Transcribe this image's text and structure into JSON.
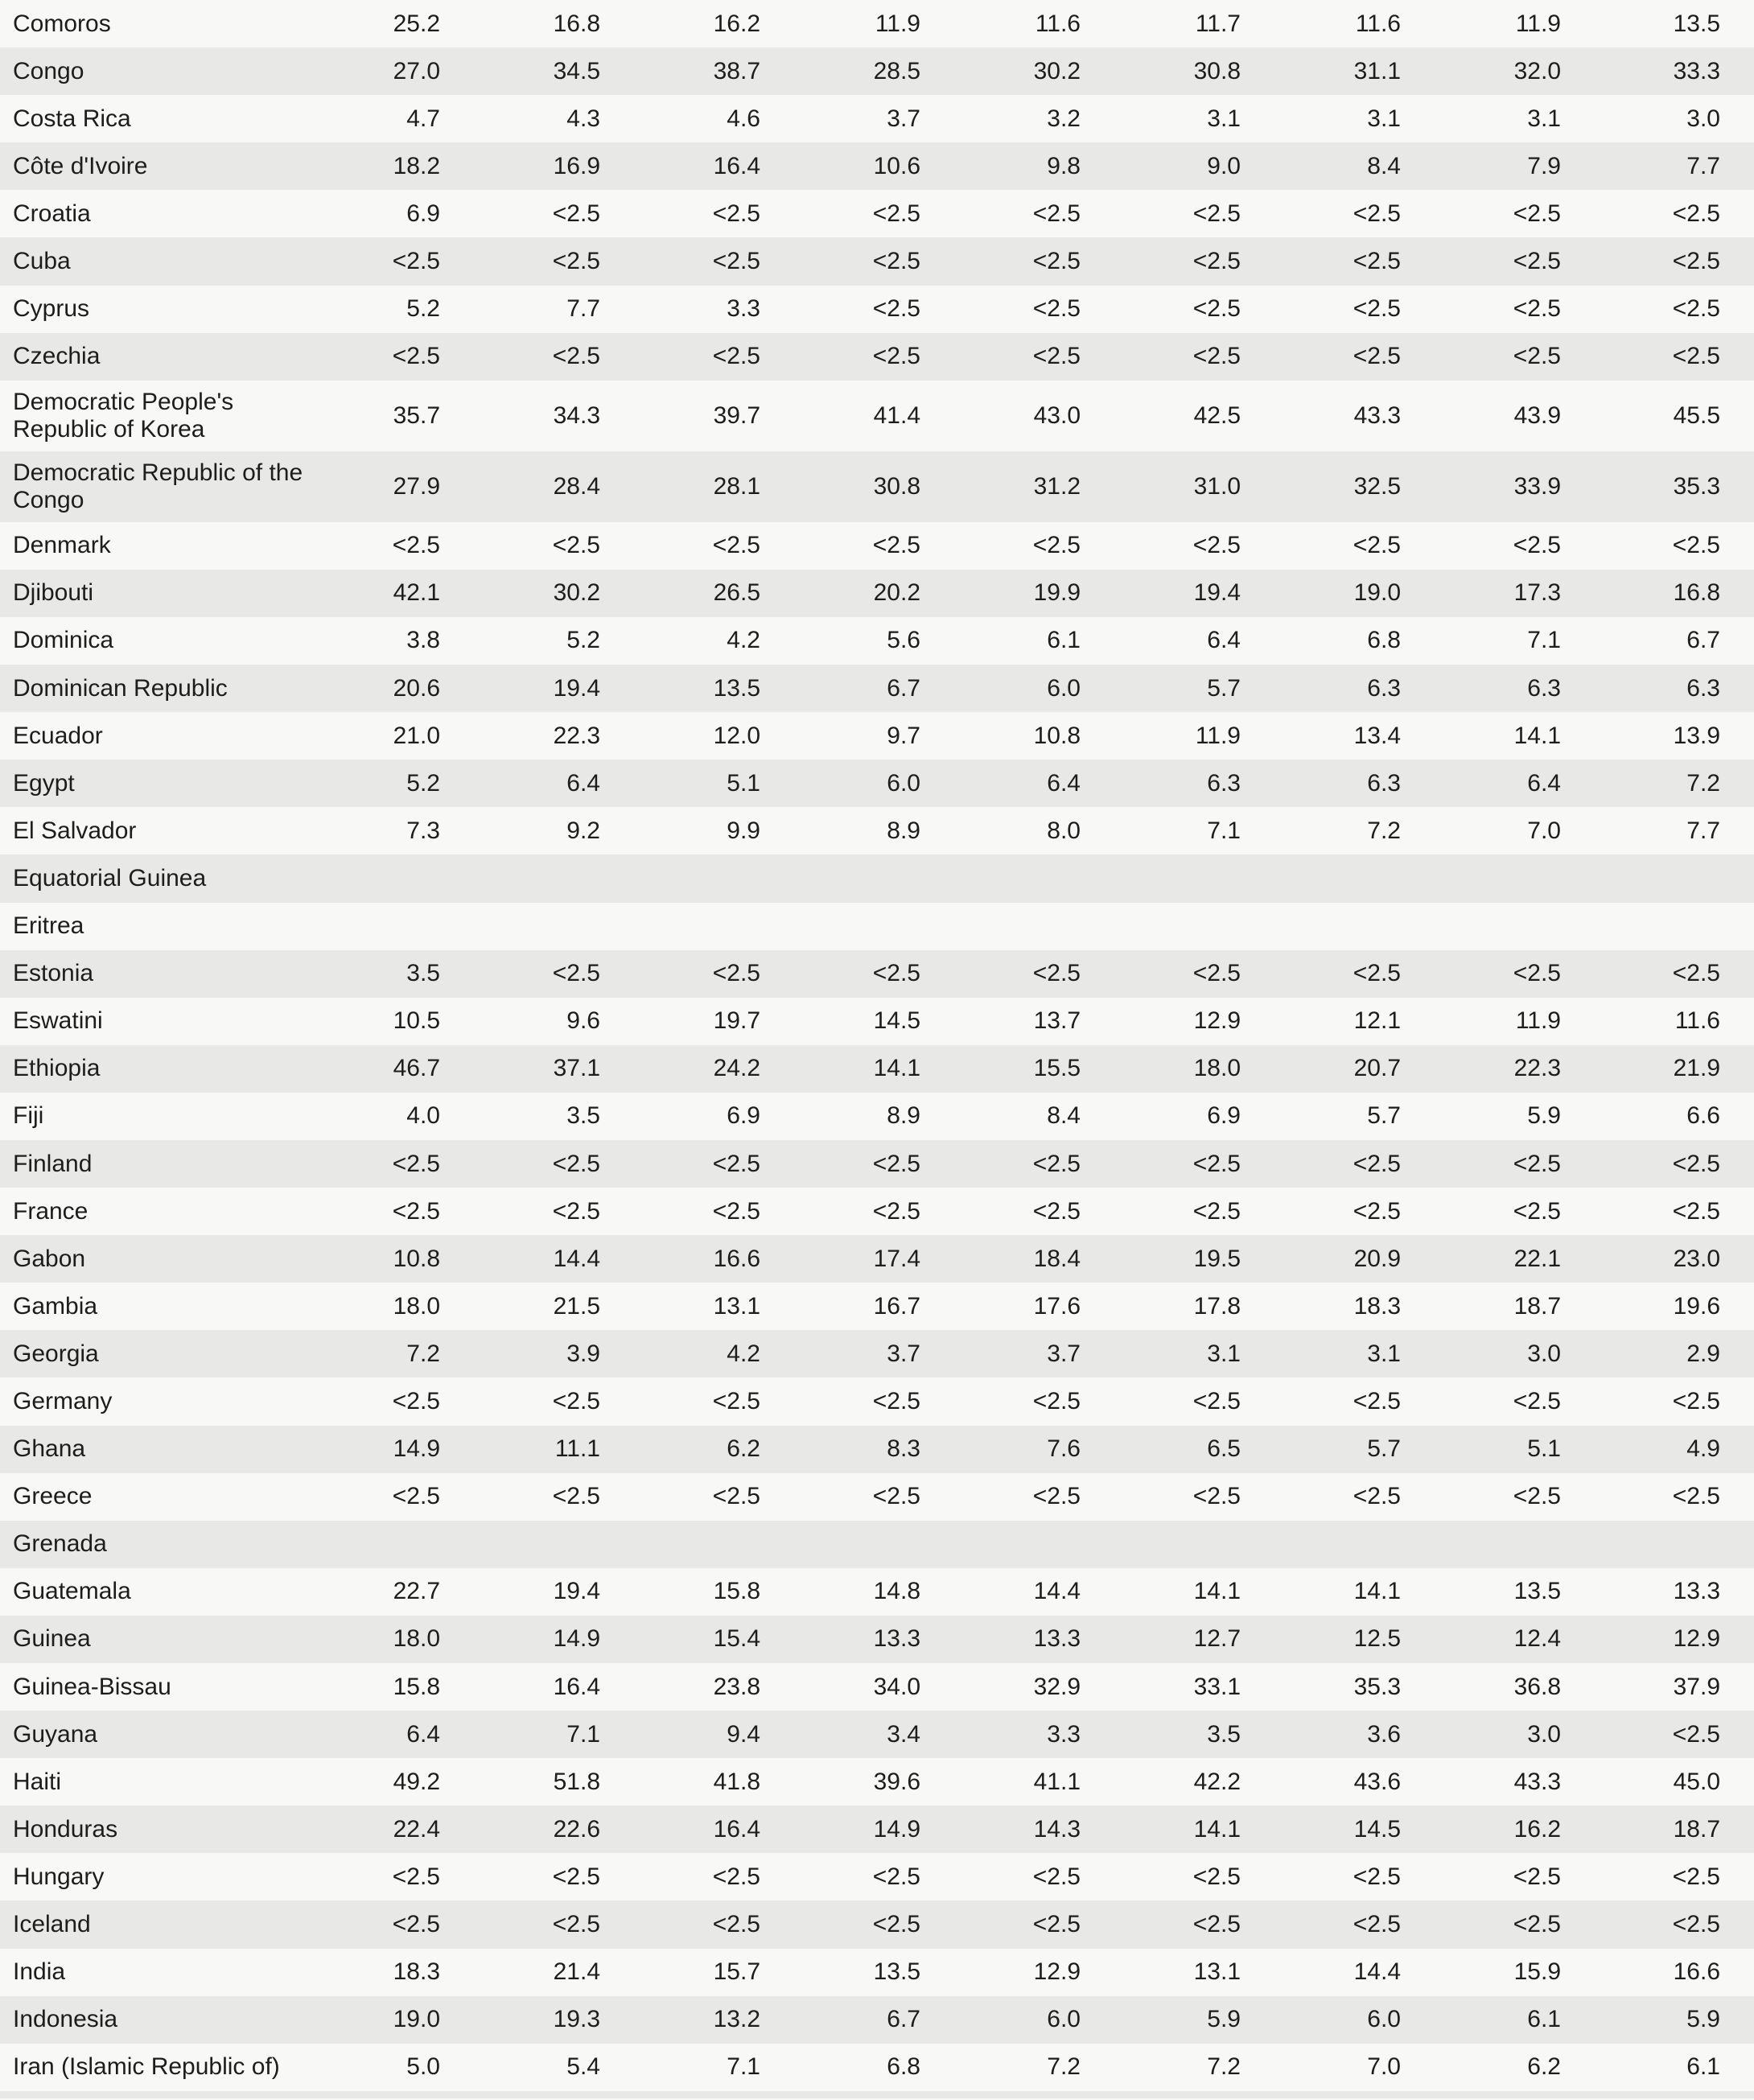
{
  "table": {
    "description": "Country table with 9 numeric value columns (percentages), no header visible",
    "rows": [
      {
        "country": "Comoros",
        "values": [
          "25.2",
          "16.8",
          "16.2",
          "11.9",
          "11.6",
          "11.7",
          "11.6",
          "11.9",
          "13.5"
        ]
      },
      {
        "country": "Congo",
        "values": [
          "27.0",
          "34.5",
          "38.7",
          "28.5",
          "30.2",
          "30.8",
          "31.1",
          "32.0",
          "33.3"
        ]
      },
      {
        "country": "Costa Rica",
        "values": [
          "4.7",
          "4.3",
          "4.6",
          "3.7",
          "3.2",
          "3.1",
          "3.1",
          "3.1",
          "3.0"
        ]
      },
      {
        "country": "Côte d'Ivoire",
        "values": [
          "18.2",
          "16.9",
          "16.4",
          "10.6",
          "9.8",
          "9.0",
          "8.4",
          "7.9",
          "7.7"
        ]
      },
      {
        "country": "Croatia",
        "values": [
          "6.9",
          "<2.5",
          "<2.5",
          "<2.5",
          "<2.5",
          "<2.5",
          "<2.5",
          "<2.5",
          "<2.5"
        ]
      },
      {
        "country": "Cuba",
        "values": [
          "<2.5",
          "<2.5",
          "<2.5",
          "<2.5",
          "<2.5",
          "<2.5",
          "<2.5",
          "<2.5",
          "<2.5"
        ]
      },
      {
        "country": "Cyprus",
        "values": [
          "5.2",
          "7.7",
          "3.3",
          "<2.5",
          "<2.5",
          "<2.5",
          "<2.5",
          "<2.5",
          "<2.5"
        ]
      },
      {
        "country": "Czechia",
        "values": [
          "<2.5",
          "<2.5",
          "<2.5",
          "<2.5",
          "<2.5",
          "<2.5",
          "<2.5",
          "<2.5",
          "<2.5"
        ]
      },
      {
        "country": "Democratic People's Republic of Korea",
        "values": [
          "35.7",
          "34.3",
          "39.7",
          "41.4",
          "43.0",
          "42.5",
          "43.3",
          "43.9",
          "45.5"
        ]
      },
      {
        "country": "Democratic Republic of the Congo",
        "values": [
          "27.9",
          "28.4",
          "28.1",
          "30.8",
          "31.2",
          "31.0",
          "32.5",
          "33.9",
          "35.3"
        ]
      },
      {
        "country": "Denmark",
        "values": [
          "<2.5",
          "<2.5",
          "<2.5",
          "<2.5",
          "<2.5",
          "<2.5",
          "<2.5",
          "<2.5",
          "<2.5"
        ]
      },
      {
        "country": "Djibouti",
        "values": [
          "42.1",
          "30.2",
          "26.5",
          "20.2",
          "19.9",
          "19.4",
          "19.0",
          "17.3",
          "16.8"
        ]
      },
      {
        "country": "Dominica",
        "values": [
          "3.8",
          "5.2",
          "4.2",
          "5.6",
          "6.1",
          "6.4",
          "6.8",
          "7.1",
          "6.7"
        ]
      },
      {
        "country": "Dominican Republic",
        "values": [
          "20.6",
          "19.4",
          "13.5",
          "6.7",
          "6.0",
          "5.7",
          "6.3",
          "6.3",
          "6.3"
        ]
      },
      {
        "country": "Ecuador",
        "values": [
          "21.0",
          "22.3",
          "12.0",
          "9.7",
          "10.8",
          "11.9",
          "13.4",
          "14.1",
          "13.9"
        ]
      },
      {
        "country": "Egypt",
        "values": [
          "5.2",
          "6.4",
          "5.1",
          "6.0",
          "6.4",
          "6.3",
          "6.3",
          "6.4",
          "7.2"
        ]
      },
      {
        "country": "El Salvador",
        "values": [
          "7.3",
          "9.2",
          "9.9",
          "8.9",
          "8.0",
          "7.1",
          "7.2",
          "7.0",
          "7.7"
        ]
      },
      {
        "country": "Equatorial Guinea",
        "values": [
          "",
          "",
          "",
          "",
          "",
          "",
          "",
          "",
          ""
        ]
      },
      {
        "country": "Eritrea",
        "values": [
          "",
          "",
          "",
          "",
          "",
          "",
          "",
          "",
          ""
        ]
      },
      {
        "country": "Estonia",
        "values": [
          "3.5",
          "<2.5",
          "<2.5",
          "<2.5",
          "<2.5",
          "<2.5",
          "<2.5",
          "<2.5",
          "<2.5"
        ]
      },
      {
        "country": "Eswatini",
        "values": [
          "10.5",
          "9.6",
          "19.7",
          "14.5",
          "13.7",
          "12.9",
          "12.1",
          "11.9",
          "11.6"
        ]
      },
      {
        "country": "Ethiopia",
        "values": [
          "46.7",
          "37.1",
          "24.2",
          "14.1",
          "15.5",
          "18.0",
          "20.7",
          "22.3",
          "21.9"
        ]
      },
      {
        "country": "Fiji",
        "values": [
          "4.0",
          "3.5",
          "6.9",
          "8.9",
          "8.4",
          "6.9",
          "5.7",
          "5.9",
          "6.6"
        ]
      },
      {
        "country": "Finland",
        "values": [
          "<2.5",
          "<2.5",
          "<2.5",
          "<2.5",
          "<2.5",
          "<2.5",
          "<2.5",
          "<2.5",
          "<2.5"
        ]
      },
      {
        "country": "France",
        "values": [
          "<2.5",
          "<2.5",
          "<2.5",
          "<2.5",
          "<2.5",
          "<2.5",
          "<2.5",
          "<2.5",
          "<2.5"
        ]
      },
      {
        "country": "Gabon",
        "values": [
          "10.8",
          "14.4",
          "16.6",
          "17.4",
          "18.4",
          "19.5",
          "20.9",
          "22.1",
          "23.0"
        ]
      },
      {
        "country": "Gambia",
        "values": [
          "18.0",
          "21.5",
          "13.1",
          "16.7",
          "17.6",
          "17.8",
          "18.3",
          "18.7",
          "19.6"
        ]
      },
      {
        "country": "Georgia",
        "values": [
          "7.2",
          "3.9",
          "4.2",
          "3.7",
          "3.7",
          "3.1",
          "3.1",
          "3.0",
          "2.9"
        ]
      },
      {
        "country": "Germany",
        "values": [
          "<2.5",
          "<2.5",
          "<2.5",
          "<2.5",
          "<2.5",
          "<2.5",
          "<2.5",
          "<2.5",
          "<2.5"
        ]
      },
      {
        "country": "Ghana",
        "values": [
          "14.9",
          "11.1",
          "6.2",
          "8.3",
          "7.6",
          "6.5",
          "5.7",
          "5.1",
          "4.9"
        ]
      },
      {
        "country": "Greece",
        "values": [
          "<2.5",
          "<2.5",
          "<2.5",
          "<2.5",
          "<2.5",
          "<2.5",
          "<2.5",
          "<2.5",
          "<2.5"
        ]
      },
      {
        "country": "Grenada",
        "values": [
          "",
          "",
          "",
          "",
          "",
          "",
          "",
          "",
          ""
        ]
      },
      {
        "country": "Guatemala",
        "values": [
          "22.7",
          "19.4",
          "15.8",
          "14.8",
          "14.4",
          "14.1",
          "14.1",
          "13.5",
          "13.3"
        ]
      },
      {
        "country": "Guinea",
        "values": [
          "18.0",
          "14.9",
          "15.4",
          "13.3",
          "13.3",
          "12.7",
          "12.5",
          "12.4",
          "12.9"
        ]
      },
      {
        "country": "Guinea-Bissau",
        "values": [
          "15.8",
          "16.4",
          "23.8",
          "34.0",
          "32.9",
          "33.1",
          "35.3",
          "36.8",
          "37.9"
        ]
      },
      {
        "country": "Guyana",
        "values": [
          "6.4",
          "7.1",
          "9.4",
          "3.4",
          "3.3",
          "3.5",
          "3.6",
          "3.0",
          "<2.5"
        ]
      },
      {
        "country": "Haiti",
        "values": [
          "49.2",
          "51.8",
          "41.8",
          "39.6",
          "41.1",
          "42.2",
          "43.6",
          "43.3",
          "45.0"
        ]
      },
      {
        "country": "Honduras",
        "values": [
          "22.4",
          "22.6",
          "16.4",
          "14.9",
          "14.3",
          "14.1",
          "14.5",
          "16.2",
          "18.7"
        ]
      },
      {
        "country": "Hungary",
        "values": [
          "<2.5",
          "<2.5",
          "<2.5",
          "<2.5",
          "<2.5",
          "<2.5",
          "<2.5",
          "<2.5",
          "<2.5"
        ]
      },
      {
        "country": "Iceland",
        "values": [
          "<2.5",
          "<2.5",
          "<2.5",
          "<2.5",
          "<2.5",
          "<2.5",
          "<2.5",
          "<2.5",
          "<2.5"
        ]
      },
      {
        "country": "India",
        "values": [
          "18.3",
          "21.4",
          "15.7",
          "13.5",
          "12.9",
          "13.1",
          "14.4",
          "15.9",
          "16.6"
        ]
      },
      {
        "country": "Indonesia",
        "values": [
          "19.0",
          "19.3",
          "13.2",
          "6.7",
          "6.0",
          "5.9",
          "6.0",
          "6.1",
          "5.9"
        ]
      },
      {
        "country": "Iran (Islamic Republic of)",
        "values": [
          "5.0",
          "5.4",
          "7.1",
          "6.8",
          "7.2",
          "7.2",
          "7.0",
          "6.2",
          "6.1"
        ]
      }
    ]
  },
  "colors": {
    "row_base": "#f8f8f7",
    "row_shaded": "#e8e8e6",
    "text": "#1d1d1b"
  }
}
